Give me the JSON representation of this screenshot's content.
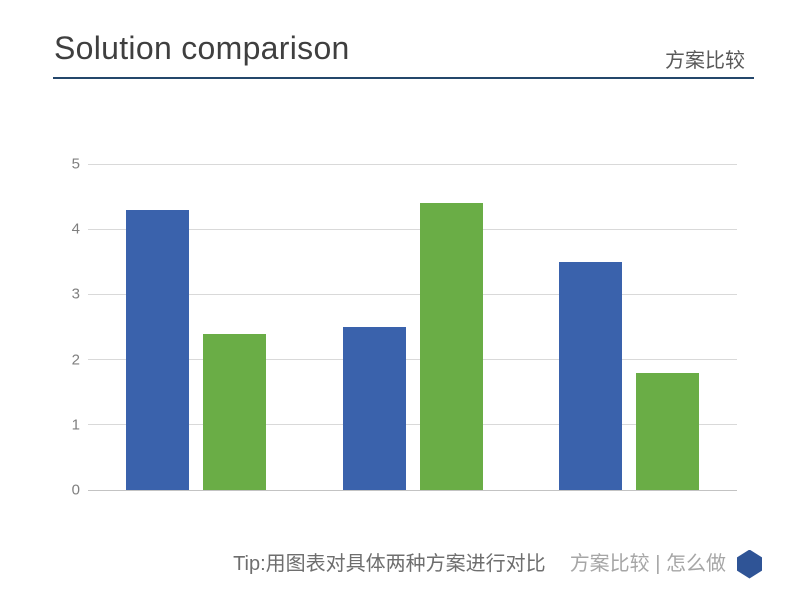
{
  "slide": {
    "title": "Solution comparison",
    "subtitle": "方案比较"
  },
  "footer": {
    "tip_text": "Tip:用图表对具体两种方案进行对比",
    "topic_text": "方案比较 | 怎么做",
    "hexagon_icon": "hexagon",
    "hexagon_color": "#2F5496"
  },
  "colors": {
    "accent_underline": "#24476B",
    "gridline": "#D9D9D9",
    "axis_label": "#7F7F7F"
  },
  "chart_data": {
    "type": "bar",
    "title": "",
    "xlabel": "",
    "ylabel": "",
    "categories": [
      "",
      "",
      ""
    ],
    "series": [
      {
        "name": "blue",
        "color": "#3A62AC",
        "values": [
          4.3,
          2.5,
          3.5
        ]
      },
      {
        "name": "green",
        "color": "#6AAD46",
        "values": [
          2.4,
          4.4,
          1.8
        ]
      }
    ],
    "ylim": [
      0,
      5
    ],
    "yticks": [
      0,
      1,
      2,
      3,
      4,
      5
    ],
    "grid": true,
    "legend": "none"
  }
}
